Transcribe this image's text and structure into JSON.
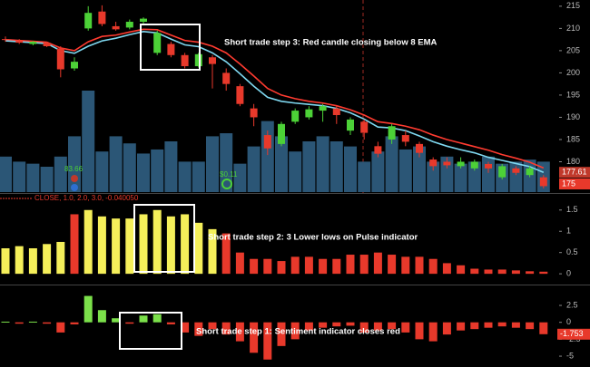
{
  "chart_data": [
    {
      "type": "candlestick",
      "open": [
        207.6,
        207.2,
        206.5,
        206.8,
        205.5,
        201.0,
        210.0,
        213.8,
        210.5,
        210.2,
        211.5,
        204.5,
        206.5,
        204.0,
        201.5,
        203.5,
        200.0,
        197.0,
        192.0,
        186.0,
        184.0,
        189.0,
        190.0,
        191.5,
        192.0,
        187.0,
        189.0,
        183.5,
        185.0,
        186.0,
        184.0,
        180.5,
        180.0,
        179.0,
        178.5,
        179.5,
        176.5,
        178.5,
        177.0,
        176.5
      ],
      "high": [
        208.2,
        207.6,
        207.2,
        207.0,
        206.0,
        203.5,
        215.0,
        215.2,
        211.5,
        212.0,
        212.5,
        209.5,
        207.0,
        204.5,
        204.5,
        204.0,
        201.0,
        197.5,
        193.0,
        187.0,
        189.0,
        192.0,
        192.5,
        193.0,
        192.5,
        190.0,
        189.5,
        184.5,
        188.5,
        187.0,
        184.5,
        181.0,
        181.0,
        181.0,
        180.5,
        180.0,
        179.5,
        179.0,
        179.0,
        177.0
      ],
      "low": [
        207.0,
        206.5,
        206.2,
        205.8,
        199.0,
        200.5,
        209.5,
        210.5,
        209.5,
        209.8,
        211.0,
        204.0,
        203.5,
        201.0,
        201.2,
        196.5,
        196.0,
        192.5,
        188.0,
        181.5,
        183.5,
        188.5,
        189.5,
        189.0,
        188.5,
        186.0,
        185.0,
        181.0,
        184.0,
        183.5,
        181.0,
        178.0,
        178.5,
        178.5,
        178.0,
        177.5,
        176.0,
        177.0,
        176.5,
        174.0
      ],
      "close": [
        207.4,
        206.8,
        207.0,
        206.0,
        200.8,
        202.5,
        213.5,
        211.0,
        209.8,
        211.5,
        212.2,
        209.0,
        204.0,
        201.5,
        204.2,
        202.0,
        197.5,
        193.0,
        190.0,
        183.0,
        188.5,
        191.5,
        191.8,
        192.5,
        190.5,
        189.5,
        186.5,
        181.8,
        188.0,
        184.5,
        182.0,
        179.0,
        179.2,
        180.0,
        180.0,
        178.5,
        179.0,
        177.5,
        178.5,
        174.5
      ],
      "up_color": "#4cd137",
      "down_color": "#e8392b",
      "series": [
        {
          "color": "#ff3b30",
          "values": [
            207.5,
            207.3,
            207.1,
            206.9,
            205.6,
            205.0,
            207.0,
            208.2,
            208.5,
            209.2,
            209.8,
            209.7,
            208.5,
            207.3,
            206.9,
            206.0,
            204.5,
            202.0,
            199.3,
            196.5,
            195.0,
            194.2,
            193.6,
            193.2,
            192.6,
            191.7,
            190.5,
            189.0,
            188.6,
            188.0,
            187.2,
            186.0,
            185.0,
            184.2,
            183.4,
            182.6,
            181.6,
            180.8,
            179.9,
            178.6
          ]
        },
        {
          "color": "#7fd8f0",
          "values": [
            207.2,
            207.0,
            206.8,
            206.6,
            205.0,
            204.4,
            206.0,
            207.2,
            207.8,
            208.6,
            209.3,
            209.0,
            207.6,
            206.3,
            205.9,
            204.5,
            202.5,
            199.8,
            197.0,
            194.5,
            193.6,
            193.2,
            192.9,
            192.6,
            192.0,
            191.0,
            189.6,
            187.8,
            187.6,
            187.0,
            185.8,
            184.5,
            183.5,
            182.7,
            182.0,
            181.0,
            180.3,
            179.6,
            178.9,
            177.6
          ]
        }
      ],
      "volume": {
        "color": "#2b5676",
        "values": [
          35,
          30,
          28,
          25,
          35,
          55,
          100,
          40,
          55,
          48,
          38,
          42,
          50,
          30,
          30,
          55,
          58,
          28,
          45,
          70,
          55,
          40,
          50,
          55,
          50,
          45,
          30,
          40,
          55,
          42,
          45,
          30,
          35,
          28,
          30,
          35,
          28,
          30,
          32,
          30
        ]
      },
      "ylim": [
        172.96,
        216.4
      ],
      "yticks": [
        175,
        180,
        185,
        190,
        195,
        200,
        205,
        210,
        215
      ],
      "price_markers": [
        {
          "value": 177.61,
          "color": "#c0392b"
        },
        {
          "value": 175,
          "color": "#e8392b"
        }
      ],
      "event_labels": [
        "83.66",
        "$0.11"
      ],
      "annotation": "Short trade step 3: Red candle closing below 8 EMA"
    },
    {
      "type": "bar",
      "header": "CLOSE, 1.0, 2.0, 3.0, -0.040050",
      "values": [
        0.6,
        0.65,
        0.6,
        0.7,
        0.75,
        1.4,
        1.5,
        1.35,
        1.3,
        1.3,
        1.4,
        1.5,
        1.35,
        1.4,
        1.2,
        1.05,
        0.95,
        0.5,
        0.35,
        0.35,
        0.3,
        0.4,
        0.4,
        0.35,
        0.35,
        0.45,
        0.45,
        0.5,
        0.45,
        0.4,
        0.4,
        0.35,
        0.25,
        0.2,
        0.12,
        0.1,
        0.1,
        0.08,
        0.06,
        0.05
      ],
      "colors": [
        "#f5ef5a",
        "#f5ef5a",
        "#f5ef5a",
        "#f5ef5a",
        "#f5ef5a",
        "#e8392b",
        "#f5ef5a",
        "#f5ef5a",
        "#f5ef5a",
        "#f5ef5a",
        "#f5ef5a",
        "#f5ef5a",
        "#f5ef5a",
        "#f5ef5a",
        "#f5ef5a",
        "#f5ef5a",
        "#e8392b",
        "#e8392b",
        "#e8392b",
        "#e8392b",
        "#e8392b",
        "#e8392b",
        "#e8392b",
        "#e8392b",
        "#e8392b",
        "#e8392b",
        "#e8392b",
        "#e8392b",
        "#e8392b",
        "#e8392b",
        "#e8392b",
        "#e8392b",
        "#e8392b",
        "#e8392b",
        "#e8392b",
        "#e8392b",
        "#e8392b",
        "#e8392b",
        "#e8392b",
        "#e8392b"
      ],
      "ylim": [
        -0.21,
        1.9
      ],
      "yticks": [
        0,
        0.5,
        1,
        1.5
      ],
      "annotation": "Short trade step 2: 3 Lower lows on Pulse indicator"
    },
    {
      "type": "bar",
      "values": [
        0.1,
        -0.2,
        0.1,
        -0.2,
        -1.5,
        -0.3,
        3.9,
        1.8,
        0.6,
        -0.2,
        1.0,
        1.2,
        -0.3,
        -1.5,
        -2.0,
        -1.0,
        -1.8,
        -2.8,
        -4.5,
        -5.5,
        -3.5,
        -2.5,
        -1.2,
        -0.8,
        -0.6,
        -0.5,
        -1.5,
        -1.2,
        -1.0,
        -1.5,
        -2.5,
        -2.8,
        -1.8,
        -1.2,
        -1.0,
        -0.8,
        -0.6,
        -0.8,
        -1.0,
        -1.753
      ],
      "up_color": "#7be04a",
      "down_color": "#e8392b",
      "ylim": [
        -6.6,
        5.45
      ],
      "yticks": [
        -5,
        -2.5,
        0,
        2.5
      ],
      "annotation": "Short trade step 1: Sentiment indicator closes red"
    }
  ]
}
